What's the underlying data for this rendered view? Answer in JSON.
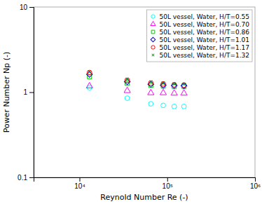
{
  "chart_data": {
    "type": "scatter",
    "xlabel": "Reynold Number Re (-)",
    "ylabel": "Power Number Np (-)",
    "log": true,
    "grid": false,
    "legend": "upper right",
    "xlim": [
      3000,
      1000000
    ],
    "ylim": [
      0.1,
      10
    ],
    "xticks": [
      {
        "value": 10000,
        "label": "10⁴"
      },
      {
        "value": 100000,
        "label": "10⁵"
      },
      {
        "value": 1000000,
        "label": "10⁶"
      }
    ],
    "yticks": [
      0.1,
      1,
      10
    ],
    "series": [
      {
        "name": "50L vessel, Water, H/T=0.55",
        "color": "#00FFFF",
        "marker": "circle",
        "x": [
          13000,
          35000,
          65000,
          90000,
          120000,
          155000
        ],
        "values": [
          1.13,
          0.85,
          0.73,
          0.7,
          0.68,
          0.68
        ]
      },
      {
        "name": "50L vessel, Water, H/T=0.70",
        "color": "#FF00FF",
        "marker": "triangle",
        "x": [
          13000,
          35000,
          65000,
          90000,
          120000,
          155000
        ],
        "values": [
          1.18,
          1.04,
          0.98,
          0.98,
          0.97,
          0.97
        ]
      },
      {
        "name": "50L vessel, Water, H/T=0.86",
        "color": "#00CC00",
        "marker": "square",
        "x": [
          13000,
          35000,
          65000,
          90000,
          120000,
          155000
        ],
        "values": [
          1.52,
          1.27,
          1.2,
          1.18,
          1.17,
          1.17
        ]
      },
      {
        "name": "50L vessel, Water, H/T=1.01",
        "color": "#0000FF",
        "marker": "diamond",
        "x": [
          13000,
          35000,
          65000,
          90000,
          120000,
          155000
        ],
        "values": [
          1.62,
          1.33,
          1.24,
          1.21,
          1.2,
          1.19
        ]
      },
      {
        "name": "50L vessel, Water, H/T=1.17",
        "color": "#FF0000",
        "marker": "circle",
        "x": [
          13000,
          35000,
          65000,
          90000,
          120000,
          155000
        ],
        "values": [
          1.7,
          1.38,
          1.28,
          1.25,
          1.22,
          1.21
        ]
      },
      {
        "name": "50L vessel, Water, H/T=1.32",
        "color": "#009900",
        "marker": "x",
        "x": [
          13000,
          35000,
          65000,
          90000,
          120000,
          155000
        ],
        "values": [
          1.73,
          1.42,
          1.32,
          1.28,
          1.25,
          1.24
        ]
      }
    ]
  }
}
